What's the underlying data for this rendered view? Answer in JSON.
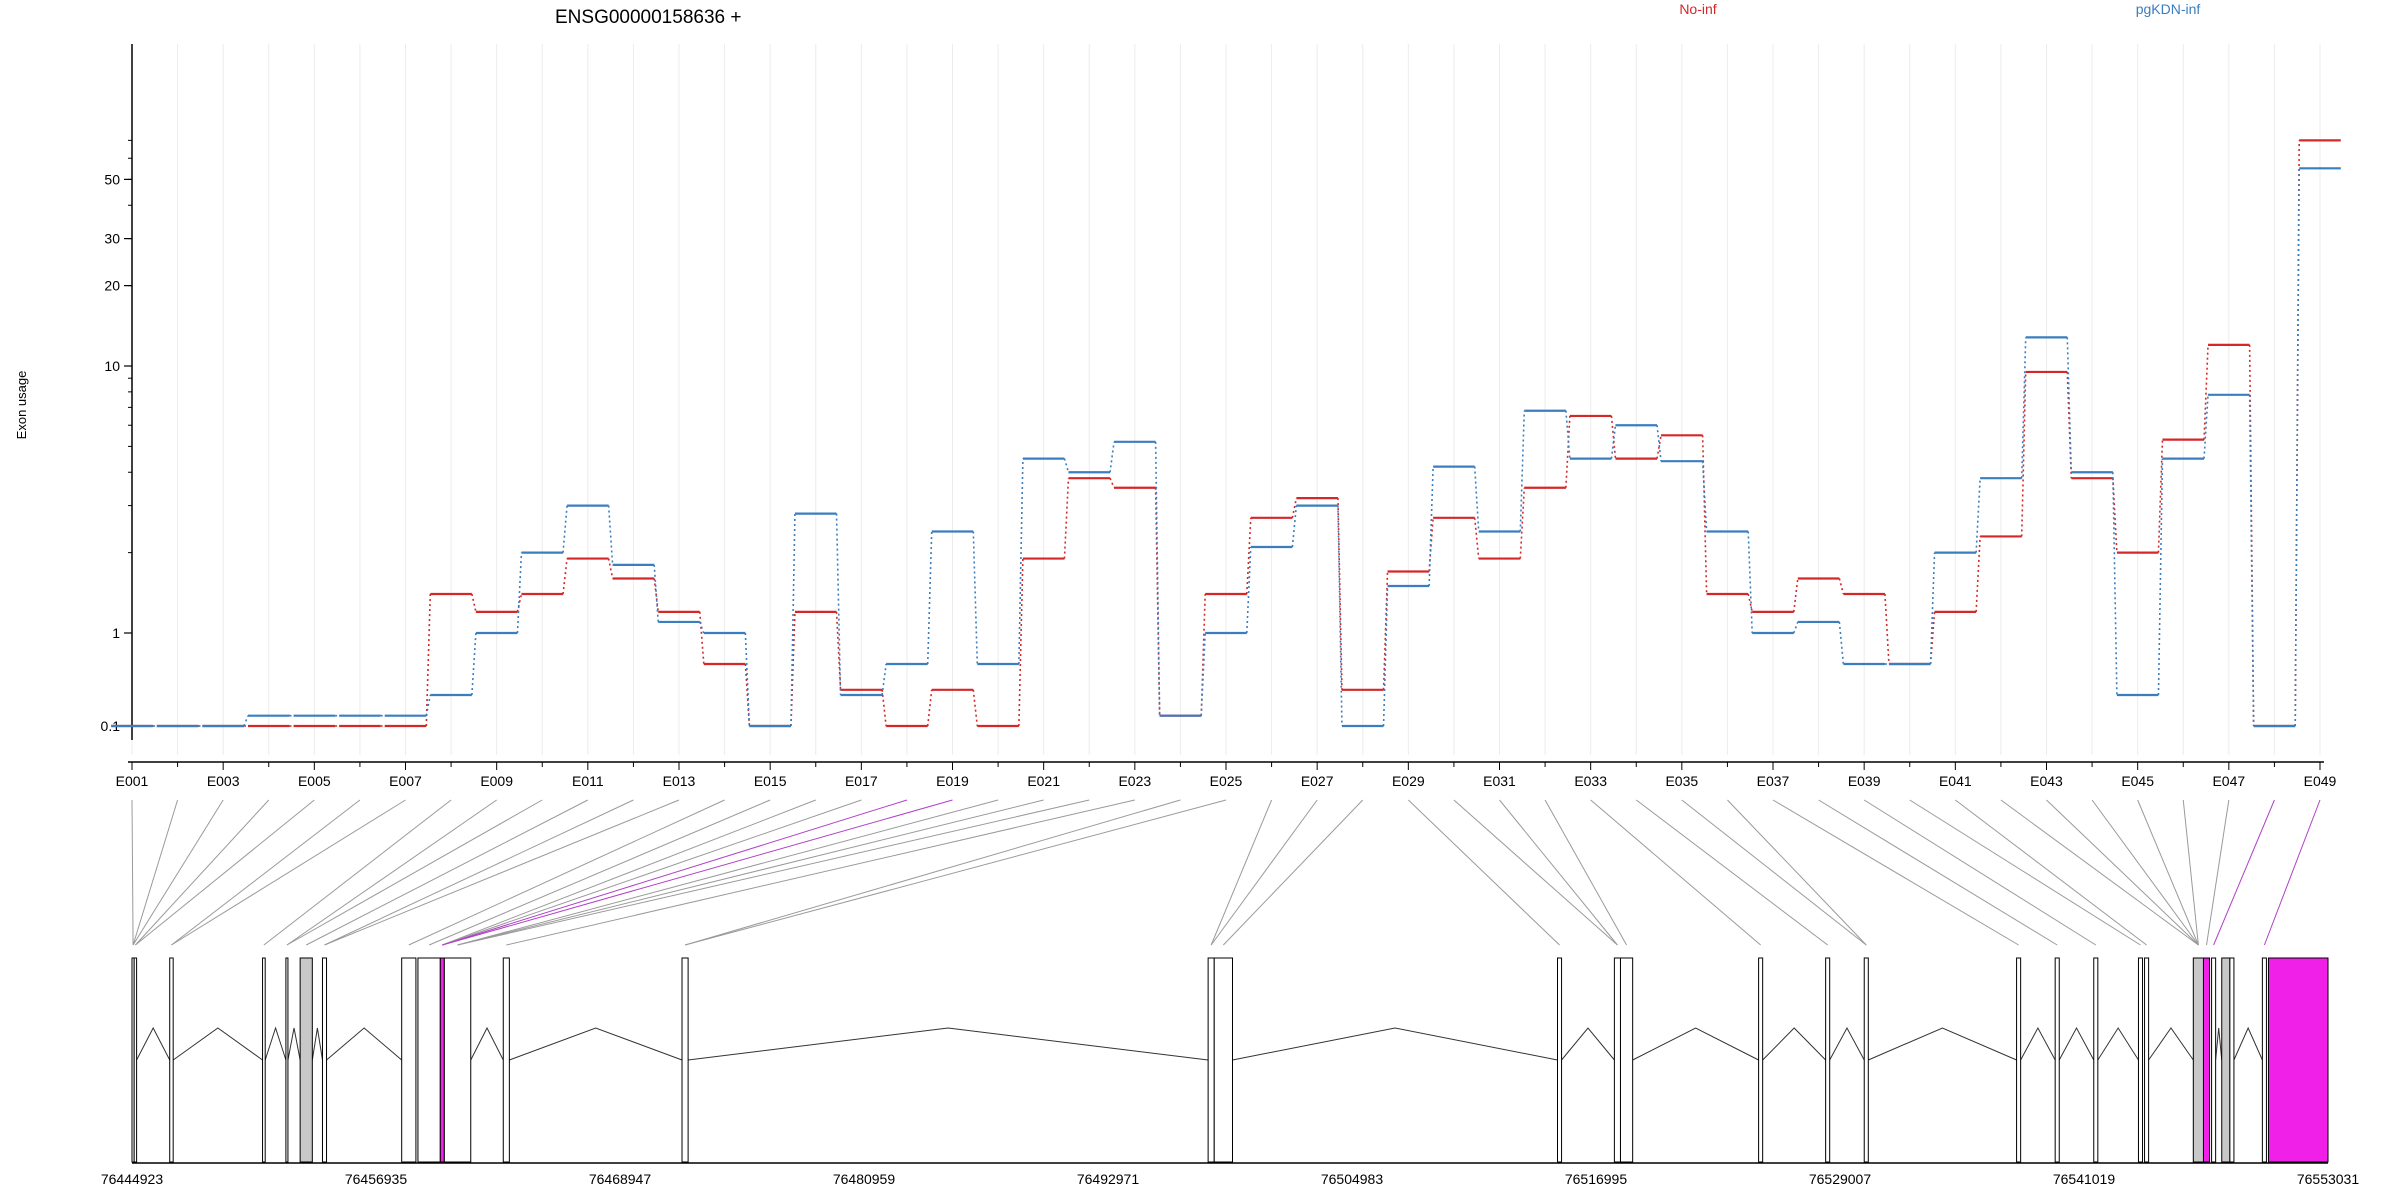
{
  "chart_data": {
    "type": "line",
    "title": "ENSG00000158636 +",
    "ylabel": "Exon usage",
    "xlabel": "",
    "y_scale": "log",
    "y_ticks": [
      "0.1",
      "1",
      "10",
      "20",
      "30",
      "50"
    ],
    "y_tick_values": [
      0.1,
      1,
      10,
      20,
      30,
      50
    ],
    "grid": "vertical",
    "legend_placement": "top-right",
    "categories": [
      "E001",
      "E002",
      "E003",
      "E004",
      "E005",
      "E006",
      "E007",
      "E008",
      "E009",
      "E010",
      "E011",
      "E012",
      "E013",
      "E014",
      "E015",
      "E016",
      "E017",
      "E018",
      "E019",
      "E020",
      "E021",
      "E022",
      "E023",
      "E024",
      "E025",
      "E026",
      "E027",
      "E028",
      "E029",
      "E030",
      "E031",
      "E032",
      "E033",
      "E034",
      "E035",
      "E036",
      "E037",
      "E038",
      "E039",
      "E040",
      "E041",
      "E042",
      "E043",
      "E044",
      "E045",
      "E046",
      "E047",
      "E048",
      "E049"
    ],
    "x_tick_labels": [
      "E001",
      "E003",
      "E005",
      "E007",
      "E009",
      "E011",
      "E013",
      "E015",
      "E017",
      "E019",
      "E021",
      "E023",
      "E025",
      "E027",
      "E029",
      "E031",
      "E033",
      "E035",
      "E037",
      "E039",
      "E041",
      "E043",
      "E045",
      "E047",
      "E049"
    ],
    "series": [
      {
        "name": "No-inf",
        "color": "#d62728",
        "values": [
          0.1,
          0.1,
          0.1,
          0.1,
          0.1,
          0.1,
          0.1,
          1.4,
          1.2,
          1.4,
          1.9,
          1.6,
          1.2,
          0.7,
          0.1,
          1.2,
          0.45,
          0.1,
          0.45,
          0.1,
          1.9,
          3.8,
          3.5,
          0.2,
          1.4,
          2.7,
          3.2,
          0.45,
          1.7,
          2.7,
          1.9,
          3.5,
          6.5,
          4.5,
          5.5,
          1.4,
          1.2,
          1.6,
          1.4,
          0.7,
          1.2,
          2.3,
          9.5,
          3.8,
          2.0,
          5.3,
          12,
          0.1,
          70
        ]
      },
      {
        "name": "pgKDN-inf",
        "color": "#3a7ebf",
        "values": [
          0.1,
          0.1,
          0.1,
          0.2,
          0.2,
          0.2,
          0.2,
          0.4,
          1.0,
          2.0,
          3.0,
          1.8,
          1.1,
          1.0,
          0.1,
          2.8,
          0.4,
          0.7,
          2.4,
          0.7,
          4.5,
          4.0,
          5.2,
          0.2,
          1.0,
          2.1,
          3.0,
          0.1,
          1.5,
          4.2,
          2.4,
          6.8,
          4.5,
          6.0,
          4.4,
          2.4,
          1.0,
          1.1,
          0.7,
          0.7,
          2.0,
          3.8,
          12.8,
          4.0,
          0.4,
          4.5,
          7.8,
          0.1,
          55
        ]
      }
    ],
    "genomic_axis": {
      "min": 76444923,
      "max": 76553031,
      "tick_labels": [
        "76444923",
        "76456935",
        "76468947",
        "76480959",
        "76492971",
        "76504983",
        "76516995",
        "76529007",
        "76541019",
        "76553031"
      ],
      "exons": [
        [
          76444923,
          76445030,
          "none"
        ],
        [
          76445030,
          76445150,
          "none"
        ],
        [
          76446780,
          76446950,
          "none"
        ],
        [
          76451350,
          76451480,
          "none"
        ],
        [
          76452500,
          76452600,
          "none"
        ],
        [
          76453200,
          76453800,
          "grey"
        ],
        [
          76454300,
          76454500,
          "none"
        ],
        [
          76458200,
          76458900,
          "none"
        ],
        [
          76459000,
          76460100,
          "none"
        ],
        [
          76460100,
          76460300,
          "magenta"
        ],
        [
          76460300,
          76461600,
          "none"
        ],
        [
          76463200,
          76463500,
          "none"
        ],
        [
          76472000,
          76472300,
          "none"
        ],
        [
          76497900,
          76498200,
          "none"
        ],
        [
          76498200,
          76499100,
          "none"
        ],
        [
          76515100,
          76515300,
          "none"
        ],
        [
          76517900,
          76518200,
          "none"
        ],
        [
          76518200,
          76518800,
          "none"
        ],
        [
          76525000,
          76525200,
          "none"
        ],
        [
          76528300,
          76528500,
          "none"
        ],
        [
          76530200,
          76530400,
          "none"
        ],
        [
          76537700,
          76537900,
          "none"
        ],
        [
          76539600,
          76539800,
          "none"
        ],
        [
          76541500,
          76541700,
          "none"
        ],
        [
          76543700,
          76543900,
          "none"
        ],
        [
          76544000,
          76544200,
          "none"
        ],
        [
          76546400,
          76546900,
          "grey"
        ],
        [
          76546900,
          76547200,
          "magenta"
        ],
        [
          76547300,
          76547500,
          "none"
        ],
        [
          76547800,
          76548200,
          "grey"
        ],
        [
          76548200,
          76548400,
          "none"
        ],
        [
          76549800,
          76550000,
          "none"
        ],
        [
          76550100,
          76553031,
          "magenta"
        ]
      ],
      "mapping": [
        0,
        0,
        0,
        1,
        1,
        2,
        2,
        3,
        4,
        4,
        5,
        6,
        6,
        7,
        8,
        9,
        9,
        9,
        9,
        10,
        10,
        10,
        11,
        12,
        12,
        13,
        13,
        14,
        15,
        16,
        16,
        17,
        18,
        19,
        20,
        20,
        21,
        22,
        23,
        24,
        25,
        26,
        26,
        26,
        26,
        26,
        27,
        28,
        31
      ],
      "highlighted": [
        17,
        18,
        47,
        48
      ]
    }
  }
}
